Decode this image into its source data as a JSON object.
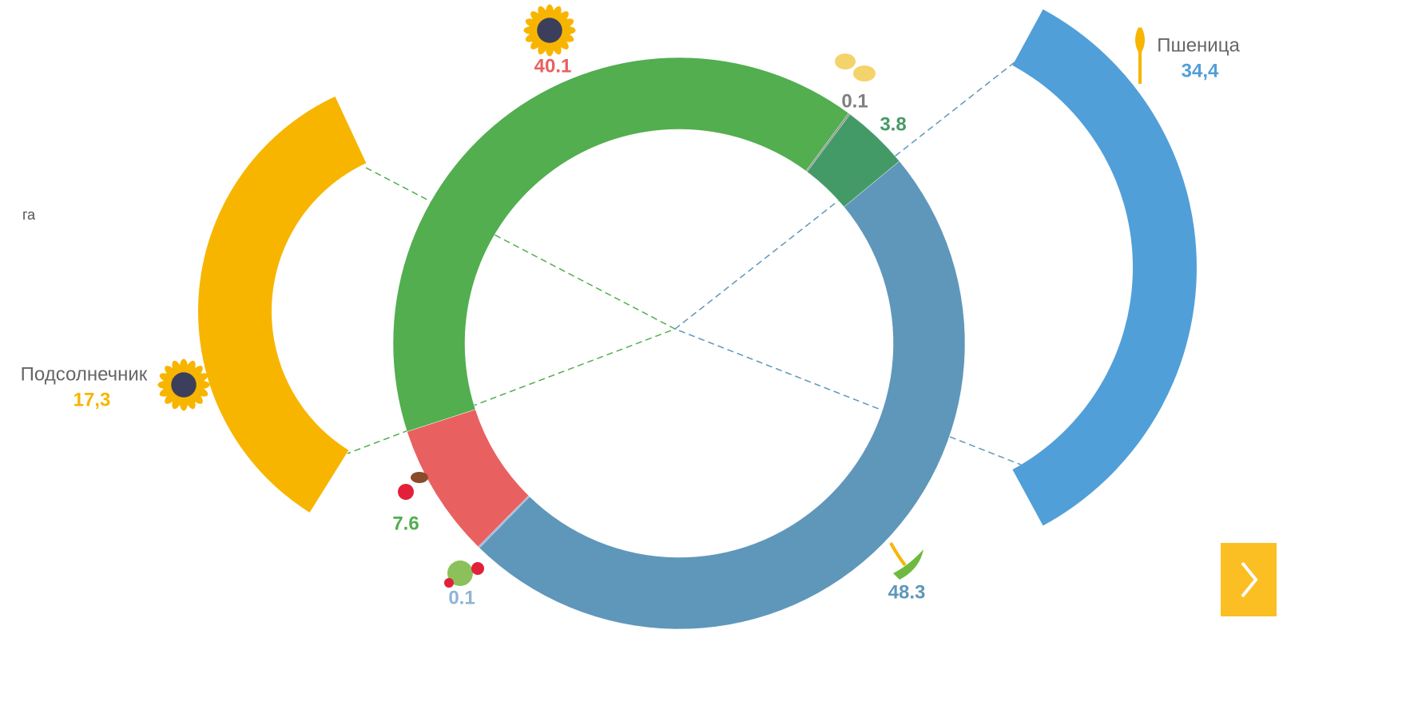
{
  "chart_data": {
    "type": "donut",
    "values": [
      40.1,
      0.1,
      3.8,
      48.3,
      0.1,
      7.6
    ],
    "colors": [
      "#52ae4f",
      "#8a8f8a",
      "#449a66",
      "#5f97ba",
      "#8fb4d6",
      "#e96060"
    ],
    "label_colors": [
      "#e96060",
      "#7f7f7f",
      "#449a66",
      "#5f97ba",
      "#8fb4d6",
      "#52ae4f"
    ],
    "unit": "га",
    "side_arcs": [
      {
        "name": "Подсолнечник",
        "value": 17.3,
        "value_label": "17,3",
        "color": "#f7b500"
      },
      {
        "name": "Пшеница",
        "value": 34.4,
        "value_label": "34,4",
        "color": "#519fd8"
      }
    ]
  }
}
